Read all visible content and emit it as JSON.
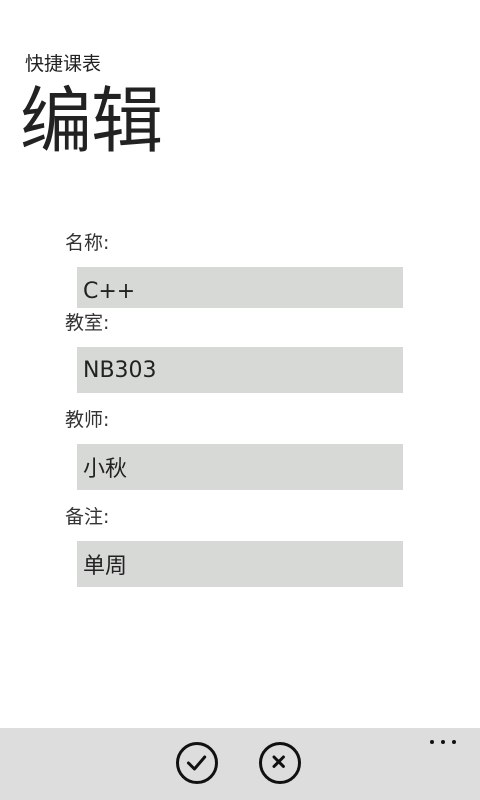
{
  "app": {
    "title": "快捷课表"
  },
  "page": {
    "title": "编辑"
  },
  "form": {
    "name": {
      "label": "名称:",
      "value": "C++"
    },
    "room": {
      "label": "教室:",
      "value": "NB303"
    },
    "teacher": {
      "label": "教师:",
      "value": "小秋"
    },
    "note": {
      "label": "备注:",
      "value": "单周"
    }
  },
  "app_bar": {
    "buttons": [
      {
        "name": "confirm",
        "icon": "check-icon"
      },
      {
        "name": "cancel",
        "icon": "close-icon"
      }
    ],
    "more_icon": "more-dots-icon"
  }
}
